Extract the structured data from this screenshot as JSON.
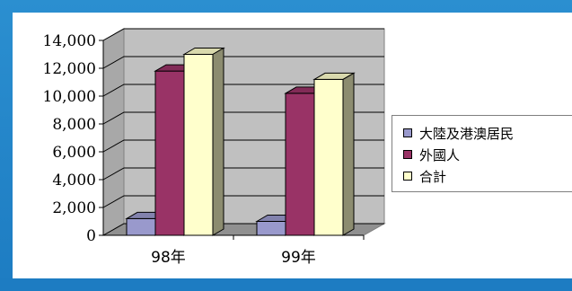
{
  "chart_data": {
    "type": "bar",
    "categories": [
      "98年",
      "99年"
    ],
    "series": [
      {
        "name": "大陸及港澳居民",
        "values": [
          1200,
          1000
        ],
        "color": "#9999cc"
      },
      {
        "name": "外國人",
        "values": [
          11800,
          10200
        ],
        "color": "#993366"
      },
      {
        "name": "合計",
        "values": [
          13000,
          11200
        ],
        "color": "#ffffcc"
      }
    ],
    "ylim": [
      0,
      14000
    ],
    "yticks": [
      "0",
      "2,000",
      "4,000",
      "6,000",
      "8,000",
      "10,000",
      "12,000",
      "14,000"
    ],
    "grid": true,
    "legend": "right",
    "wall_color": "#c0c0c0"
  }
}
